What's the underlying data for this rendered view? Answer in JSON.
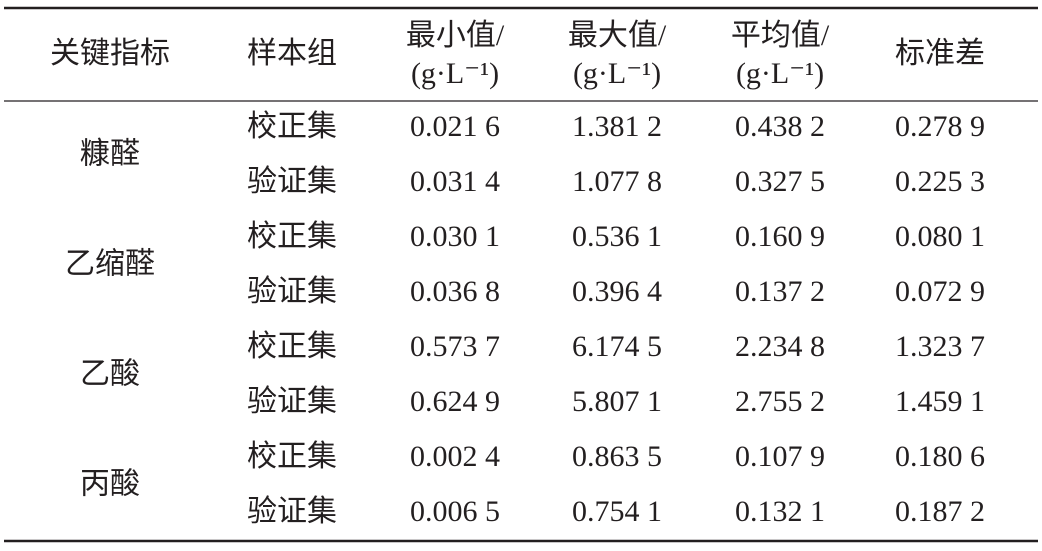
{
  "table": {
    "header": [
      {
        "text": "关键指标"
      },
      {
        "text": "样本组"
      },
      {
        "text": "最小值/",
        "unit": "(g·L⁻¹)"
      },
      {
        "text": "最大值/",
        "unit": "(g·L⁻¹)"
      },
      {
        "text": "平均值/",
        "unit": "(g·L⁻¹)"
      },
      {
        "text": "标准差"
      }
    ],
    "groups": [
      {
        "name": "糠醛",
        "rows": [
          {
            "sample": "校正集",
            "values": [
              "0.021 6",
              "1.381 2",
              "0.438 2",
              "0.278 9"
            ]
          },
          {
            "sample": "验证集",
            "values": [
              "0.031 4",
              "1.077 8",
              "0.327 5",
              "0.225 3"
            ]
          }
        ]
      },
      {
        "name": "乙缩醛",
        "rows": [
          {
            "sample": "校正集",
            "values": [
              "0.030 1",
              "0.536 1",
              "0.160 9",
              "0.080 1"
            ]
          },
          {
            "sample": "验证集",
            "values": [
              "0.036 8",
              "0.396 4",
              "0.137 2",
              "0.072 9"
            ]
          }
        ]
      },
      {
        "name": "乙酸",
        "rows": [
          {
            "sample": "校正集",
            "values": [
              "0.573 7",
              "6.174 5",
              "2.234 8",
              "1.323 7"
            ]
          },
          {
            "sample": "验证集",
            "values": [
              "0.624 9",
              "5.807 1",
              "2.755 2",
              "1.459 1"
            ]
          }
        ]
      },
      {
        "name": "丙酸",
        "rows": [
          {
            "sample": "校正集",
            "values": [
              "0.002 4",
              "0.863 5",
              "0.107 9",
              "0.180 6"
            ]
          },
          {
            "sample": "验证集",
            "values": [
              "0.006 5",
              "0.754 1",
              "0.132 1",
              "0.187 2"
            ]
          }
        ]
      }
    ]
  }
}
